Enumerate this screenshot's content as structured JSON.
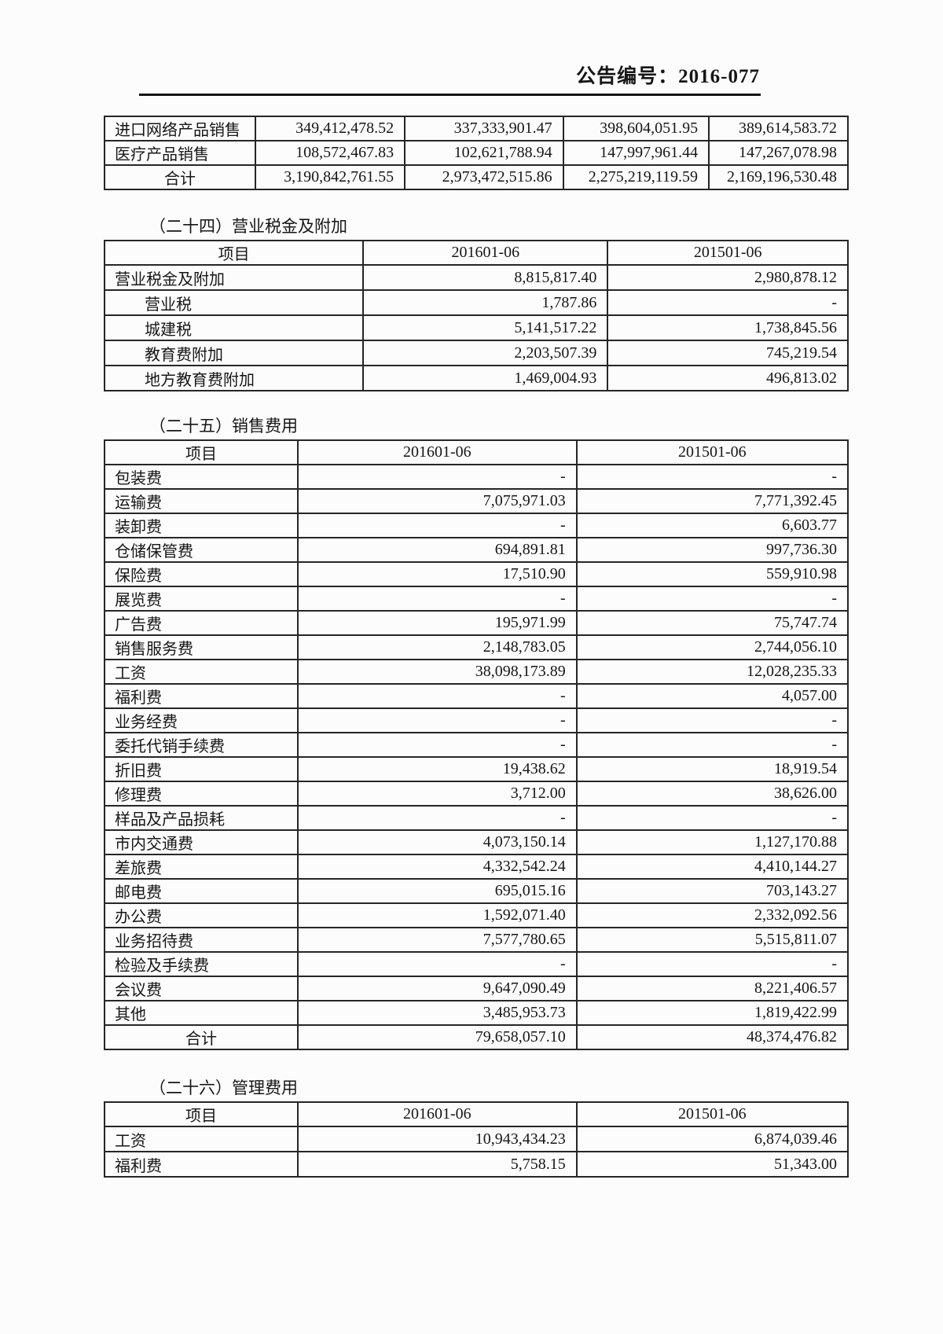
{
  "page_header": {
    "doc_number": "公告编号：2016-077"
  },
  "top_table": {
    "rows": [
      {
        "label": "进口网络产品销售",
        "values": [
          "349,412,478.52",
          "337,333,901.47",
          "398,604,051.95",
          "389,614,583.72"
        ]
      },
      {
        "label": "医疗产品销售",
        "values": [
          "108,572,467.83",
          "102,621,788.94",
          "147,997,961.44",
          "147,267,078.98"
        ]
      },
      {
        "label": "合计",
        "total": true,
        "values": [
          "3,190,842,761.55",
          "2,973,472,515.86",
          "2,275,219,119.59",
          "2,169,196,530.48"
        ]
      }
    ]
  },
  "sections": [
    {
      "heading": "（二十四）营业税金及附加",
      "columns": [
        "项目",
        "201601-06",
        "201501-06"
      ],
      "rows": [
        {
          "label": "营业税金及附加",
          "values": [
            "8,815,817.40",
            "2,980,878.12"
          ]
        },
        {
          "label": "营业税",
          "indent": true,
          "values": [
            "1,787.86",
            "-"
          ]
        },
        {
          "label": "城建税",
          "indent": true,
          "values": [
            "5,141,517.22",
            "1,738,845.56"
          ]
        },
        {
          "label": "教育费附加",
          "indent": true,
          "values": [
            "2,203,507.39",
            "745,219.54"
          ]
        },
        {
          "label": "地方教育费附加",
          "indent": true,
          "values": [
            "1,469,004.93",
            "496,813.02"
          ]
        }
      ]
    },
    {
      "heading": "（二十五）销售费用",
      "columns": [
        "项目",
        "201601-06",
        "201501-06"
      ],
      "rows": [
        {
          "label": "包装费",
          "values": [
            "-",
            "-"
          ]
        },
        {
          "label": "运输费",
          "values": [
            "7,075,971.03",
            "7,771,392.45"
          ]
        },
        {
          "label": "装卸费",
          "values": [
            "-",
            "6,603.77"
          ]
        },
        {
          "label": "仓储保管费",
          "values": [
            "694,891.81",
            "997,736.30"
          ]
        },
        {
          "label": "保险费",
          "values": [
            "17,510.90",
            "559,910.98"
          ]
        },
        {
          "label": "展览费",
          "values": [
            "-",
            "-"
          ]
        },
        {
          "label": "广告费",
          "values": [
            "195,971.99",
            "75,747.74"
          ]
        },
        {
          "label": "销售服务费",
          "values": [
            "2,148,783.05",
            "2,744,056.10"
          ]
        },
        {
          "label": "工资",
          "values": [
            "38,098,173.89",
            "12,028,235.33"
          ]
        },
        {
          "label": "福利费",
          "values": [
            "-",
            "4,057.00"
          ]
        },
        {
          "label": "业务经费",
          "values": [
            "-",
            "-"
          ]
        },
        {
          "label": "委托代销手续费",
          "values": [
            "-",
            "-"
          ]
        },
        {
          "label": "折旧费",
          "values": [
            "19,438.62",
            "18,919.54"
          ]
        },
        {
          "label": "修理费",
          "values": [
            "3,712.00",
            "38,626.00"
          ]
        },
        {
          "label": "样品及产品损耗",
          "values": [
            "-",
            "-"
          ]
        },
        {
          "label": "市内交通费",
          "values": [
            "4,073,150.14",
            "1,127,170.88"
          ]
        },
        {
          "label": "差旅费",
          "values": [
            "4,332,542.24",
            "4,410,144.27"
          ]
        },
        {
          "label": "邮电费",
          "values": [
            "695,015.16",
            "703,143.27"
          ]
        },
        {
          "label": "办公费",
          "values": [
            "1,592,071.40",
            "2,332,092.56"
          ]
        },
        {
          "label": "业务招待费",
          "values": [
            "7,577,780.65",
            "5,515,811.07"
          ]
        },
        {
          "label": "检验及手续费",
          "values": [
            "-",
            "-"
          ]
        },
        {
          "label": "会议费",
          "values": [
            "9,647,090.49",
            "8,221,406.57"
          ]
        },
        {
          "label": "其他",
          "values": [
            "3,485,953.73",
            "1,819,422.99"
          ]
        },
        {
          "label": "合计",
          "total": true,
          "values": [
            "79,658,057.10",
            "48,374,476.82"
          ]
        }
      ]
    },
    {
      "heading": "（二十六）管理费用",
      "columns": [
        "项目",
        "201601-06",
        "201501-06"
      ],
      "rows": [
        {
          "label": "工资",
          "values": [
            "10,943,434.23",
            "6,874,039.46"
          ]
        },
        {
          "label": "福利费",
          "values": [
            "5,758.15",
            "51,343.00"
          ]
        }
      ]
    }
  ]
}
